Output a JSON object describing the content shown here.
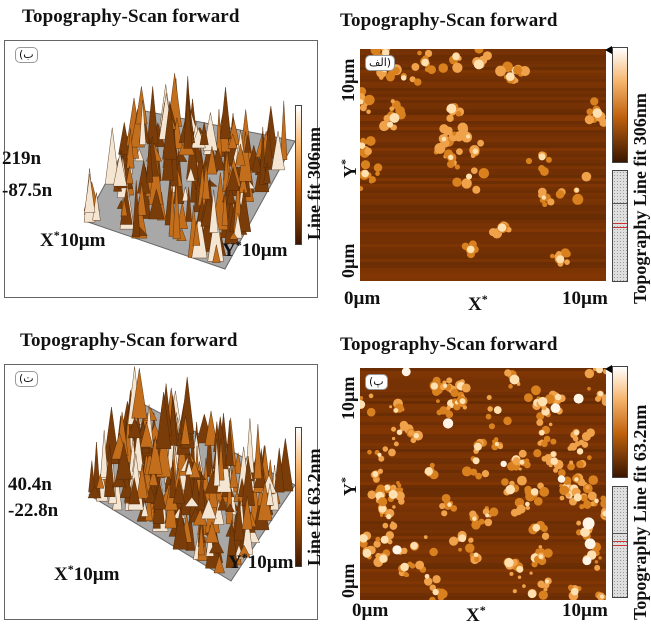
{
  "panels": {
    "b3d": {
      "title": "Topography-Scan forward",
      "tag": "(ب",
      "zmax": "219n",
      "zmin": "-87.5n",
      "x_axis": "X",
      "y_axis": "Y",
      "star": "*",
      "span": "10µm",
      "colorbar": "Line fit 306nm"
    },
    "alf": {
      "title": "Topography-Scan forward",
      "tag": "الف)",
      "y_top": "10µm",
      "y_bottom": "0µm",
      "x_left": "0µm",
      "x_right": "10µm",
      "x_axis": "X",
      "y_axis": "Y",
      "star": "*",
      "colorbar": "Topography Line fit 306nm"
    },
    "t3d": {
      "title": "Topography-Scan forward",
      "tag": "(ت",
      "zmax": "40.4n",
      "zmin": "-22.8n",
      "x_axis": "X",
      "y_axis": "Y",
      "star": "*",
      "span": "10µm",
      "colorbar": "Line fit 63.2nm"
    },
    "p": {
      "title": "Topography-Scan forward",
      "tag": "(پ",
      "y_top": "10µm",
      "y_bottom": "0µm",
      "x_left": "0µm",
      "x_right": "10µm",
      "x_axis": "X",
      "y_axis": "Y",
      "star": "*",
      "colorbar": "Topography Line fit 63.2nm"
    }
  },
  "colors": {
    "afm_dark": "#3a1800",
    "afm_mid": "#b65a0c",
    "afm_light": "#ffe0b0"
  }
}
